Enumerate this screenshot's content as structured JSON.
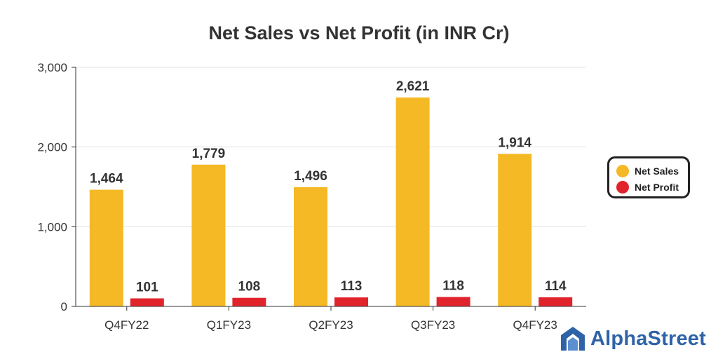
{
  "chart_data": {
    "type": "bar",
    "title": "Net Sales vs Net Profit (in INR Cr)",
    "categories": [
      "Q4FY22",
      "Q1FY23",
      "Q2FY23",
      "Q3FY23",
      "Q4FY23"
    ],
    "series": [
      {
        "name": "Net Sales",
        "values": [
          1464,
          1779,
          1496,
          2621,
          1914
        ],
        "labels": [
          "1,464",
          "1,779",
          "1,496",
          "2,621",
          "1,914"
        ],
        "color": "#f5b926"
      },
      {
        "name": "Net Profit",
        "values": [
          101,
          108,
          113,
          118,
          114
        ],
        "labels": [
          "101",
          "108",
          "113",
          "118",
          "114"
        ],
        "color": "#e1242c"
      }
    ],
    "y_ticks": [
      0,
      1000,
      2000,
      3000
    ],
    "y_tick_labels": [
      "0",
      "1,000",
      "2,000",
      "3,000"
    ],
    "ylim": [
      0,
      3000
    ],
    "xlabel": "",
    "ylabel": "",
    "grid": true,
    "legend_position": "right"
  },
  "brand": {
    "name": "AlphaStreet",
    "icon": "alphastreet-logo-icon",
    "color": "#2f63a8"
  }
}
